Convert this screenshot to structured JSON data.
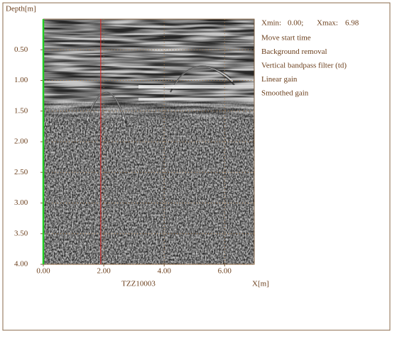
{
  "chart_data": {
    "type": "radargram",
    "y_axis_label": "Depth[m]",
    "x_axis_label": "X[m]",
    "file_name": "TZZ10003",
    "info": {
      "xmin_label": "Xmin:",
      "xmin": "0.00;",
      "xmax_label": "Xmax:",
      "xmax": "6.98"
    },
    "processing_steps": [
      "Move start time",
      "Background removal",
      "Vertical bandpass filter (td)",
      "Linear gain",
      "Smoothed gain"
    ],
    "xlim": [
      0,
      6.98
    ],
    "ylim": [
      0,
      4
    ],
    "xticks": [
      {
        "value": 0,
        "label": "0.00"
      },
      {
        "value": 2,
        "label": "2.00"
      },
      {
        "value": 4,
        "label": "4.00"
      },
      {
        "value": 6,
        "label": "6.00"
      }
    ],
    "yticks": [
      {
        "value": 0.5,
        "label": "0.50"
      },
      {
        "value": 1,
        "label": "1.00"
      },
      {
        "value": 1.5,
        "label": "1.50"
      },
      {
        "value": 2,
        "label": "2.00"
      },
      {
        "value": 2.5,
        "label": "2.50"
      },
      {
        "value": 3,
        "label": "3.00"
      },
      {
        "value": 3.5,
        "label": "3.50"
      },
      {
        "value": 4,
        "label": "4.00"
      }
    ],
    "grid": true,
    "marker_x": 1.9,
    "marker_color": "#e02020",
    "start_line_color": "#22cc22"
  }
}
